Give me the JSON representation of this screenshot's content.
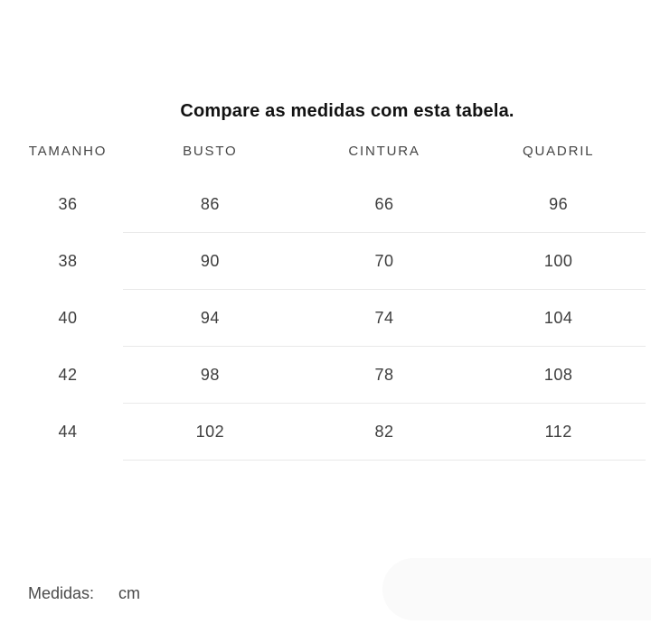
{
  "title": "Compare as medidas com esta tabela.",
  "table": {
    "headers": [
      "TAMANHO",
      "BUSTO",
      "CINTURA",
      "QUADRIL"
    ],
    "rows": [
      {
        "size": "36",
        "busto": "86",
        "cintura": "66",
        "quadril": "96"
      },
      {
        "size": "38",
        "busto": "90",
        "cintura": "70",
        "quadril": "100"
      },
      {
        "size": "40",
        "busto": "94",
        "cintura": "74",
        "quadril": "104"
      },
      {
        "size": "42",
        "busto": "98",
        "cintura": "78",
        "quadril": "108"
      },
      {
        "size": "44",
        "busto": "102",
        "cintura": "82",
        "quadril": "112"
      }
    ]
  },
  "footer": {
    "label": "Medidas:",
    "unit": "cm"
  },
  "colors": {
    "background": "#ffffff",
    "title_text": "#121212",
    "header_text": "#454545",
    "cell_text": "#3d3d3d",
    "row_divider": "#e9e9e9",
    "bottom_pill": "#fafafa"
  }
}
